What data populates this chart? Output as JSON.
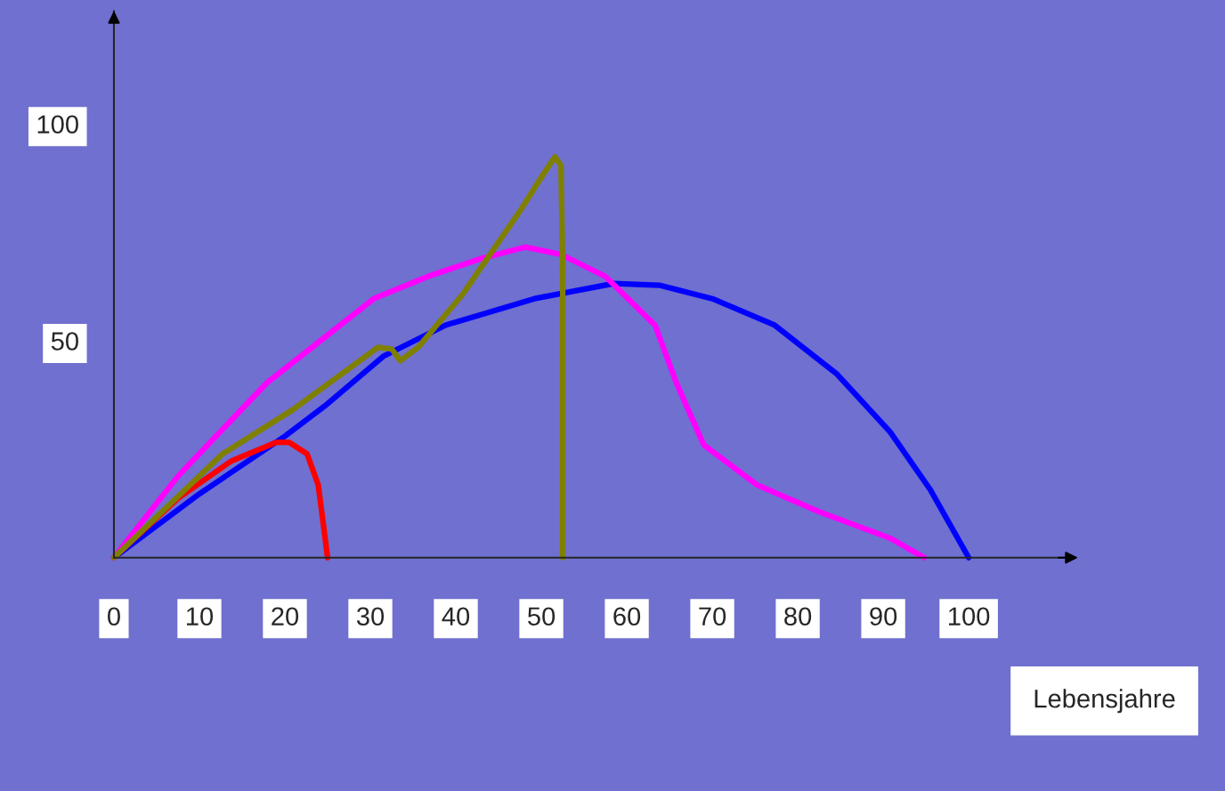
{
  "chart_data": {
    "type": "line",
    "xlabel": "Lebensjahre",
    "xlim": [
      0,
      112.5
    ],
    "ylim": [
      0,
      126
    ],
    "xticks": [
      0,
      10,
      20,
      30,
      40,
      50,
      60,
      70,
      80,
      90,
      100
    ],
    "yticks": [
      50,
      100
    ],
    "grid": false,
    "legend": false,
    "marker": "none",
    "line_style": "solid",
    "series": [
      {
        "color": "#0000ff",
        "x": [
          0,
          10,
          20,
          24.7,
          31.5,
          38.8,
          49.2,
          58.5,
          63.8,
          70,
          77.3,
          84.6,
          90.8,
          95.5,
          100
        ],
        "values": [
          0,
          14.7,
          28,
          35,
          46.4,
          53.6,
          59.7,
          63.2,
          62.8,
          59.7,
          53.6,
          42.3,
          29,
          15.7,
          0
        ]
      },
      {
        "color": "#ff0000",
        "x": [
          0,
          7.5,
          13.75,
          19,
          20.5,
          22.6,
          23.9,
          25
        ],
        "values": [
          0,
          13.7,
          22.3,
          26.6,
          26.6,
          23.9,
          16.8,
          0
        ]
      },
      {
        "color": "#ff00ff",
        "x": [
          0,
          7.5,
          17.9,
          30.4,
          36.7,
          42.9,
          48.1,
          52.3,
          57.5,
          63.3,
          65.8,
          69,
          75.2,
          82.5,
          90.8,
          94.8
        ],
        "values": [
          0,
          18.8,
          40.3,
          59.7,
          64.8,
          68.9,
          71.6,
          69.9,
          64.8,
          53.6,
          40.3,
          26,
          16.8,
          10.6,
          4.5,
          0
        ]
      },
      {
        "color": "#808000",
        "x": [
          0,
          12.7,
          21,
          30.9,
          32.5,
          33.5,
          35.6,
          40.8,
          47.6,
          50.2,
          51.6,
          52.3,
          52.5,
          52.5
        ],
        "values": [
          0,
          23.9,
          34.2,
          48.5,
          48.1,
          45.4,
          48.5,
          60.7,
          80.2,
          88.3,
          92.4,
          90.4,
          66.9,
          0
        ]
      }
    ]
  }
}
